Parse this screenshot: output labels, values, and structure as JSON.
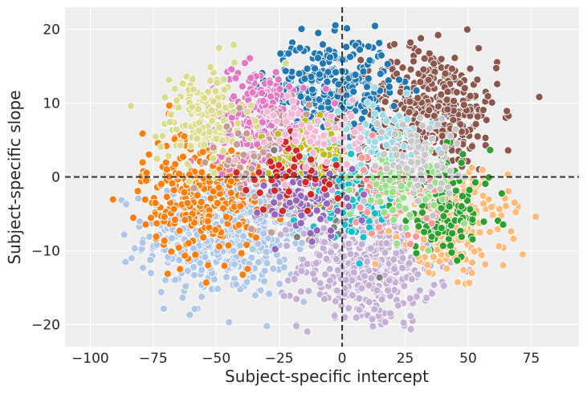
{
  "chart_data": {
    "type": "scatter",
    "title": "",
    "xlabel": "Subject-specific intercept",
    "ylabel": "Subject-specific slope",
    "xlim": [
      -110,
      94
    ],
    "ylim": [
      -23,
      23
    ],
    "xticks": [
      -100,
      -75,
      -50,
      -25,
      0,
      25,
      50,
      75
    ],
    "xtick_labels": [
      "−100",
      "−75",
      "−50",
      "−25",
      "0",
      "25",
      "50",
      "75"
    ],
    "yticks": [
      -20,
      -10,
      0,
      10,
      20
    ],
    "ytick_labels": [
      "−20",
      "−10",
      "0",
      "10",
      "20"
    ],
    "grid": true,
    "background": "#eeeeee",
    "reference_lines": {
      "x": 0,
      "y": 0,
      "style": "dashed",
      "color": "#333333"
    },
    "clusters": [
      {
        "color": "#aec7e8",
        "center": [
          -45,
          -8
        ],
        "spread": [
          22,
          5
        ],
        "n": 520
      },
      {
        "color": "#c5b0d5",
        "center": [
          10,
          -12
        ],
        "spread": [
          18,
          5
        ],
        "n": 420
      },
      {
        "color": "#8c564b",
        "center": [
          35,
          9
        ],
        "spread": [
          18,
          5
        ],
        "n": 420
      },
      {
        "color": "#1f77b4",
        "center": [
          -5,
          12
        ],
        "spread": [
          16,
          4
        ],
        "n": 330
      },
      {
        "color": "#ff7f0e",
        "center": [
          -55,
          -2
        ],
        "spread": [
          16,
          5
        ],
        "n": 320
      },
      {
        "color": "#e377c2",
        "center": [
          -32,
          8
        ],
        "spread": [
          14,
          4
        ],
        "n": 240
      },
      {
        "color": "#dbdb8d",
        "center": [
          -55,
          8
        ],
        "spread": [
          12,
          4
        ],
        "n": 150
      },
      {
        "color": "#ffbb78",
        "center": [
          45,
          -6
        ],
        "spread": [
          14,
          4
        ],
        "n": 220
      },
      {
        "color": "#2ca02c",
        "center": [
          40,
          -4
        ],
        "spread": [
          13,
          4
        ],
        "n": 150
      },
      {
        "color": "#c49c94",
        "center": [
          -25,
          2
        ],
        "spread": [
          18,
          4
        ],
        "n": 120
      },
      {
        "color": "#7f7f7f",
        "center": [
          0,
          -2
        ],
        "spread": [
          12,
          4
        ],
        "n": 100
      },
      {
        "color": "#bcbd22",
        "center": [
          -12,
          3
        ],
        "spread": [
          10,
          3
        ],
        "n": 80
      },
      {
        "color": "#17becf",
        "center": [
          5,
          -3
        ],
        "spread": [
          12,
          3
        ],
        "n": 80
      },
      {
        "color": "#9edae5",
        "center": [
          15,
          5
        ],
        "spread": [
          12,
          3
        ],
        "n": 80
      },
      {
        "color": "#ff9896",
        "center": [
          20,
          -2
        ],
        "spread": [
          12,
          3
        ],
        "n": 80
      },
      {
        "color": "#98df8a",
        "center": [
          25,
          -1
        ],
        "spread": [
          12,
          3
        ],
        "n": 80
      },
      {
        "color": "#c7c7c7",
        "center": [
          30,
          3
        ],
        "spread": [
          12,
          3
        ],
        "n": 80
      },
      {
        "color": "#9467bd",
        "center": [
          -15,
          -3
        ],
        "spread": [
          12,
          3
        ],
        "n": 80
      },
      {
        "color": "#d62728",
        "center": [
          -20,
          0
        ],
        "spread": [
          12,
          3
        ],
        "n": 50
      },
      {
        "color": "#f7b6d2",
        "center": [
          -10,
          6
        ],
        "spread": [
          12,
          3
        ],
        "n": 60
      }
    ]
  }
}
